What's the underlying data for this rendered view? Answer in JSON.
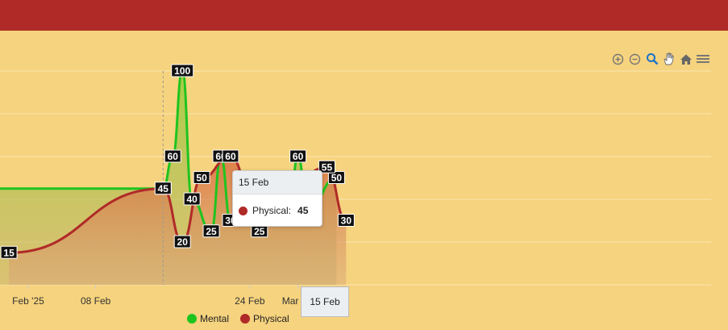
{
  "chart_data": {
    "type": "area",
    "x_ticks": [
      "Feb '25",
      "08 Feb",
      "24 Feb",
      "Mar '25"
    ],
    "crosshair_label": "15 Feb",
    "series": [
      {
        "name": "Mental",
        "color": "#1ec41e",
        "points": [
          {
            "x": "2025-01-29",
            "y": 45
          },
          {
            "x": "2025-02-15",
            "y": 45
          },
          {
            "x": "2025-02-16",
            "y": 60
          },
          {
            "x": "2025-02-17",
            "y": 100
          },
          {
            "x": "2025-02-18",
            "y": 40
          },
          {
            "x": "2025-02-20",
            "y": 25
          },
          {
            "x": "2025-02-21",
            "y": 60
          },
          {
            "x": "2025-02-22",
            "y": 30
          },
          {
            "x": "2025-02-24",
            "y": 45
          },
          {
            "x": "2025-02-26",
            "y": 50
          },
          {
            "x": "2025-02-27",
            "y": 40
          },
          {
            "x": "2025-02-28",
            "y": 30
          },
          {
            "x": "2025-03-01",
            "y": 60
          },
          {
            "x": "2025-03-02",
            "y": 35
          },
          {
            "x": "2025-03-05",
            "y": 50
          }
        ]
      },
      {
        "name": "Physical",
        "color": "#b02a28",
        "points": [
          {
            "x": "2025-01-30",
            "y": 15
          },
          {
            "x": "2025-02-15",
            "y": 45
          },
          {
            "x": "2025-02-17",
            "y": 20
          },
          {
            "x": "2025-02-19",
            "y": 50
          },
          {
            "x": "2025-02-22",
            "y": 60
          },
          {
            "x": "2025-02-25",
            "y": 25
          },
          {
            "x": "2025-02-27",
            "y": 40
          },
          {
            "x": "2025-03-04",
            "y": 55
          },
          {
            "x": "2025-03-06",
            "y": 30
          }
        ]
      }
    ],
    "ylim": [
      -15,
      130
    ],
    "grid": true,
    "legend_position": "bottom"
  },
  "tooltip": {
    "date": "15 Feb",
    "series": "Physical:",
    "value": "45"
  },
  "toolbar": [
    "zoom-in-icon",
    "zoom-out-icon",
    "magnifier-icon",
    "pan-hand-icon",
    "home-icon",
    "menu-icon"
  ],
  "legend": {
    "mental": "Mental",
    "physical": "Physical"
  }
}
